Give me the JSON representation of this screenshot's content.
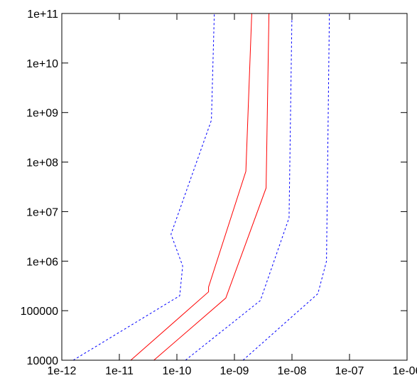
{
  "chart_data": {
    "type": "line",
    "title": "",
    "xlabel": "",
    "ylabel": "",
    "x_scale": "log",
    "y_scale": "log",
    "xlim": [
      1e-12,
      1e-06
    ],
    "ylim": [
      10000,
      100000000000.0
    ],
    "grid": false,
    "legend": "none",
    "x_ticks": [
      {
        "value": 1e-12,
        "label": "1e-12"
      },
      {
        "value": 1e-11,
        "label": "1e-11"
      },
      {
        "value": 1e-10,
        "label": "1e-10"
      },
      {
        "value": 1e-09,
        "label": "1e-09"
      },
      {
        "value": 1e-08,
        "label": "1e-08"
      },
      {
        "value": 1e-07,
        "label": "1e-07"
      },
      {
        "value": 1e-06,
        "label": "1e-06"
      }
    ],
    "y_ticks": [
      {
        "value": 10000,
        "label": "10000"
      },
      {
        "value": 100000,
        "label": "100000"
      },
      {
        "value": 1000000.0,
        "label": "1e+06"
      },
      {
        "value": 10000000.0,
        "label": "1e+07"
      },
      {
        "value": 100000000.0,
        "label": "1e+08"
      },
      {
        "value": 1000000000.0,
        "label": "1e+09"
      },
      {
        "value": 10000000000.0,
        "label": "1e+10"
      },
      {
        "value": 100000000000.0,
        "label": "1e+11"
      }
    ],
    "series": [
      {
        "style": "dashed",
        "color": "#0000ff",
        "points": [
          {
            "x": 1.58e-12,
            "y": 10000
          },
          {
            "x": 1.12e-10,
            "y": 200000
          },
          {
            "x": 1.26e-10,
            "y": 800000
          },
          {
            "x": 7.9e-11,
            "y": 3500000.0
          },
          {
            "x": 3.98e-10,
            "y": 700000000.0
          },
          {
            "x": 4.47e-10,
            "y": 100000000000.0
          }
        ]
      },
      {
        "style": "solid",
        "color": "#ff0000",
        "points": [
          {
            "x": 1.58e-11,
            "y": 10000
          },
          {
            "x": 3.55e-10,
            "y": 240000
          },
          {
            "x": 3.55e-10,
            "y": 300000
          },
          {
            "x": 1.58e-09,
            "y": 65000000.0
          },
          {
            "x": 2e-09,
            "y": 100000000000.0
          }
        ]
      },
      {
        "style": "solid",
        "color": "#ff0000",
        "points": [
          {
            "x": 3.98e-11,
            "y": 10000
          },
          {
            "x": 7.08e-10,
            "y": 180000
          },
          {
            "x": 3.55e-09,
            "y": 30000000.0
          },
          {
            "x": 3.98e-09,
            "y": 100000000000.0
          }
        ]
      },
      {
        "style": "dashed",
        "color": "#0000ff",
        "points": [
          {
            "x": 1.41e-10,
            "y": 10000
          },
          {
            "x": 2.82e-09,
            "y": 160000
          },
          {
            "x": 8.9e-09,
            "y": 7500000.0
          },
          {
            "x": 1e-08,
            "y": 100000000000.0
          }
        ]
      },
      {
        "style": "dashed",
        "color": "#0000ff",
        "points": [
          {
            "x": 1.41e-09,
            "y": 10000
          },
          {
            "x": 2.82e-08,
            "y": 220000
          },
          {
            "x": 3.98e-08,
            "y": 1000000.0
          },
          {
            "x": 4.47e-08,
            "y": 100000000000.0
          }
        ]
      }
    ]
  }
}
